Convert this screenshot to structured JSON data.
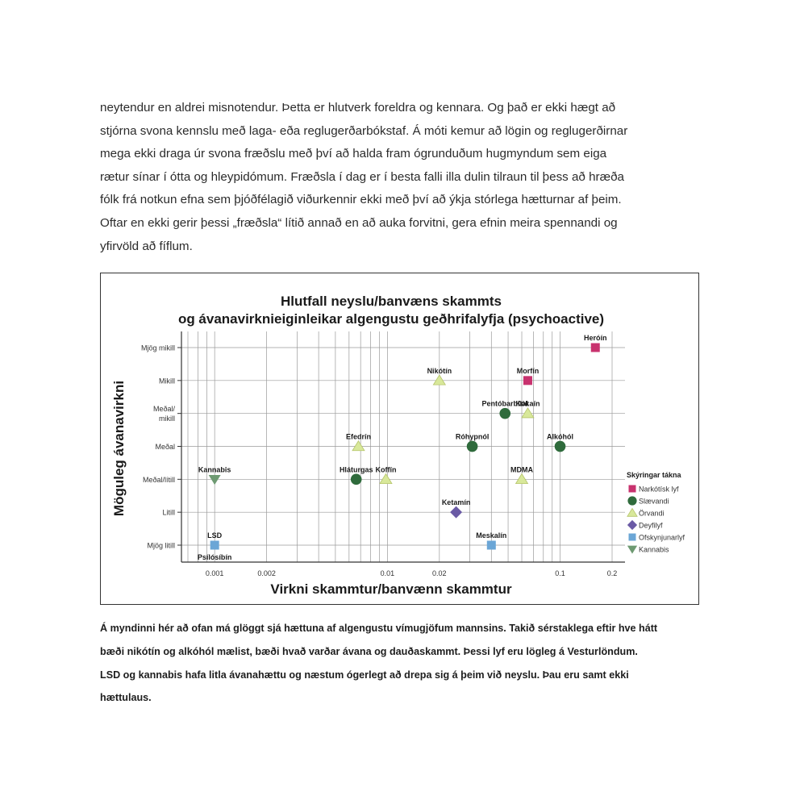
{
  "body_text": [
    "neytendur en aldrei misnotendur. Þetta er hlutverk foreldra og kennara. Og það er ekki hægt að",
    "stjórna svona kennslu með laga- eða reglugerðarbókstaf. Á móti kemur að lögin og reglugerðirnar",
    "mega ekki draga úr svona fræðslu með því að halda fram ógrunduðum hugmyndum sem eiga",
    "rætur sínar í ótta og hleypidómum. Fræðsla í dag er í besta falli illa dulin tilraun til þess að hræða",
    "fólk frá notkun efna sem þjóðfélagið viðurkennir ekki með því að ýkja stórlega hætturnar af þeim.",
    "Oftar en ekki gerir þessi „fræðsla“ lítið annað en að auka forvitni, gera efnin meira spennandi og",
    "yfirvöld að fíflum."
  ],
  "caption": [
    "Á myndinni hér að ofan má glöggt sjá hættuna af algengustu vímugjöfum mannsins. Takið sérstaklega eftir hve hátt",
    "bæði nikótín og alkóhól mælist, bæði hvað varðar ávana og dauðaskammt. Þessi lyf eru lögleg á Vesturlöndum.",
    "LSD og kannabis hafa litla ávanahættu og næstum ógerlegt að drepa sig á þeim við neyslu. Þau eru samt ekki",
    "hættulaus."
  ],
  "chart_data": {
    "type": "scatter",
    "title": [
      "Hlutfall neyslu/banvæns skammts",
      "og ávanavirknieiginleikar algengustu geðhrifalyfja (psychoactive)"
    ],
    "xlabel": "Virkni skammtur/banvænn skammtur",
    "ylabel": "Möguleg ávanavirkni",
    "x_scale": "log",
    "xlim": [
      0.0007,
      0.2
    ],
    "x_ticks": [
      {
        "value": 0.001,
        "label": "0.001"
      },
      {
        "value": 0.002,
        "label": "0.002"
      },
      {
        "value": 0.01,
        "label": "0.01"
      },
      {
        "value": 0.02,
        "label": "0.02"
      },
      {
        "value": 0.1,
        "label": "0.1"
      },
      {
        "value": 0.2,
        "label": "0.2"
      }
    ],
    "y_categories": [
      [
        "Mjög litill"
      ],
      [
        "Litill"
      ],
      [
        "Meðal/lítill"
      ],
      [
        "Meðal"
      ],
      [
        "Meðal/",
        "mikill"
      ],
      [
        "Mikill"
      ],
      [
        "Mjög mikill"
      ]
    ],
    "grid": true,
    "legend_title": "Skýringar tákna",
    "legend_position": "right",
    "categories": [
      {
        "key": "narc",
        "name": "Narkótísk lyf",
        "marker": "square",
        "color": "#c8326e"
      },
      {
        "key": "sed",
        "name": "Slævandi",
        "marker": "circle",
        "color": "#2f6b3c"
      },
      {
        "key": "stim",
        "name": "Örvandi",
        "marker": "triangle-up",
        "color": "#d8e89a"
      },
      {
        "key": "diss",
        "name": "Deyfilyf",
        "marker": "diamond",
        "color": "#6a5aa5"
      },
      {
        "key": "psych",
        "name": "Ofskynjunarlyf",
        "marker": "square",
        "color": "#6ba6d6"
      },
      {
        "key": "cann",
        "name": "Kannabis",
        "marker": "triangle-down",
        "color": "#6e9a72"
      }
    ],
    "points": [
      {
        "label": "Heróín",
        "category": "narc",
        "x": 0.16,
        "y": 6,
        "label_pos": "above"
      },
      {
        "label": "Morfín",
        "category": "narc",
        "x": 0.065,
        "y": 5,
        "label_pos": "above"
      },
      {
        "label": "Nikótín",
        "category": "stim",
        "x": 0.02,
        "y": 5,
        "label_pos": "above"
      },
      {
        "label": "Pentóbarbital",
        "category": "sed",
        "x": 0.048,
        "y": 4,
        "label_pos": "above"
      },
      {
        "label": "Kókaín",
        "category": "stim",
        "x": 0.065,
        "y": 4,
        "label_pos": "above"
      },
      {
        "label": "Efedrín",
        "category": "stim",
        "x": 0.0068,
        "y": 3,
        "label_pos": "above"
      },
      {
        "label": "Róhypnól",
        "category": "sed",
        "x": 0.031,
        "y": 3,
        "label_pos": "above"
      },
      {
        "label": "Alkóhól",
        "category": "sed",
        "x": 0.1,
        "y": 3,
        "label_pos": "above"
      },
      {
        "label": "Kannabis",
        "category": "cann",
        "x": 0.001,
        "y": 2,
        "label_pos": "above"
      },
      {
        "label": "Hláturgas",
        "category": "sed",
        "x": 0.0066,
        "y": 2,
        "label_pos": "above"
      },
      {
        "label": "Koffín",
        "category": "stim",
        "x": 0.0098,
        "y": 2,
        "label_pos": "above"
      },
      {
        "label": "MDMA",
        "category": "stim",
        "x": 0.06,
        "y": 2,
        "label_pos": "above"
      },
      {
        "label": "Ketamín",
        "category": "diss",
        "x": 0.025,
        "y": 1,
        "label_pos": "above"
      },
      {
        "label": "LSD",
        "category": "psych",
        "x": 0.001,
        "y": 0,
        "label_pos": "above"
      },
      {
        "label": "Psílósíbín",
        "category": "psych",
        "x": 0.001,
        "y": 0,
        "label_pos": "below"
      },
      {
        "label": "Meskalín",
        "category": "psych",
        "x": 0.04,
        "y": 0,
        "label_pos": "above"
      }
    ]
  }
}
